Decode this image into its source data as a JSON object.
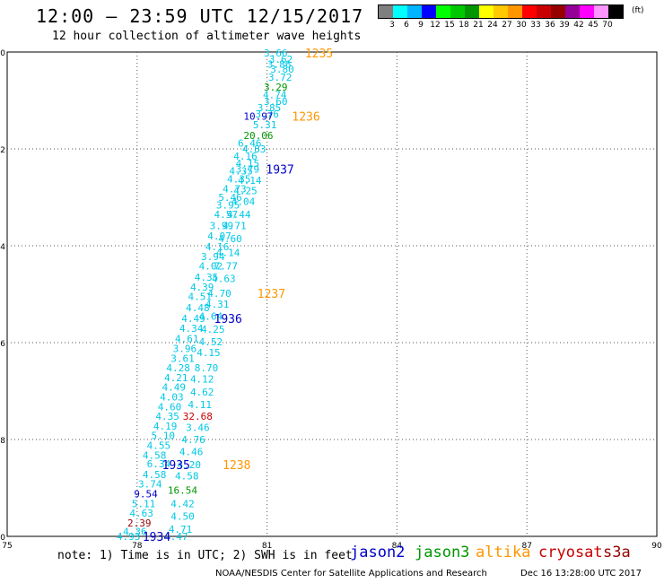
{
  "header": {
    "title": "12:00 – 23:59 UTC 12/15/2017",
    "subtitle": "12 hour collection of altimeter wave heights"
  },
  "color_scale": {
    "colors": [
      "#7f7f7f",
      "#00ffff",
      "#00b4ff",
      "#0000ff",
      "#00ff00",
      "#00c800",
      "#009600",
      "#ffff00",
      "#ffc800",
      "#ff9600",
      "#ff0000",
      "#c80000",
      "#960000",
      "#960096",
      "#ff00ff",
      "#ff96ff",
      "#000000"
    ],
    "labels": [
      "3",
      "6",
      "9",
      "12",
      "15",
      "18",
      "21",
      "24",
      "27",
      "30",
      "33",
      "36",
      "39",
      "42",
      "45",
      "70"
    ],
    "unit": "(ft)"
  },
  "axes": {
    "x_ticks": [
      "75",
      "78",
      "81",
      "84",
      "87",
      "90"
    ],
    "y_ticks": [
      "0",
      "-2",
      "-4",
      "-6",
      "-8",
      "-10"
    ]
  },
  "track_colors": {
    "wave": "#00c8e6",
    "jason2": "#0000c8",
    "jason3": "#009600",
    "altika": "#ff9600",
    "cryosat": "#c80000",
    "s3a": "#960000"
  },
  "chart_data": {
    "type": "scatter",
    "title": "12:00 – 23:59 UTC 12/15/2017",
    "subtitle": "12 hour collection of altimeter wave heights",
    "xlim": [
      75,
      90
    ],
    "ylim": [
      -10,
      0
    ],
    "grid": "dotted",
    "units": "ft",
    "points": [
      {
        "x": 81.2,
        "y": -0.02,
        "label": "3.66",
        "sat": "wave"
      },
      {
        "x": 81.32,
        "y": -0.15,
        "label": "3.62",
        "sat": "wave"
      },
      {
        "x": 81.28,
        "y": -0.25,
        "label": "3.86",
        "sat": "wave"
      },
      {
        "x": 81.35,
        "y": -0.35,
        "label": "3.80",
        "sat": "wave"
      },
      {
        "x": 81.3,
        "y": -0.52,
        "label": "3.72",
        "sat": "wave"
      },
      {
        "x": 81.2,
        "y": -0.72,
        "label": "3.29",
        "sat": "jason3"
      },
      {
        "x": 81.18,
        "y": -0.88,
        "label": "4.74",
        "sat": "wave"
      },
      {
        "x": 81.2,
        "y": -1.02,
        "label": "3.60",
        "sat": "wave"
      },
      {
        "x": 81.05,
        "y": -1.15,
        "label": "3.85",
        "sat": "wave"
      },
      {
        "x": 81.0,
        "y": -1.28,
        "label": "3.76",
        "sat": "wave"
      },
      {
        "x": 80.8,
        "y": -1.32,
        "label": "10.97",
        "sat": "jason2"
      },
      {
        "x": 80.95,
        "y": -1.5,
        "label": "5.31",
        "sat": "wave"
      },
      {
        "x": 80.8,
        "y": -1.72,
        "label": "20.06",
        "sat": "jason3"
      },
      {
        "x": 80.6,
        "y": -1.88,
        "label": "6.46",
        "sat": "wave"
      },
      {
        "x": 80.7,
        "y": -2.0,
        "label": "4.83",
        "sat": "wave"
      },
      {
        "x": 80.5,
        "y": -2.15,
        "label": "4.16",
        "sat": "wave"
      },
      {
        "x": 80.55,
        "y": -2.3,
        "label": "4.15",
        "sat": "wave"
      },
      {
        "x": 80.4,
        "y": -2.45,
        "label": "4.35",
        "sat": "wave"
      },
      {
        "x": 80.55,
        "y": -2.42,
        "label": "3.79",
        "sat": "wave"
      },
      {
        "x": 80.35,
        "y": -2.62,
        "label": "4.35",
        "sat": "wave"
      },
      {
        "x": 80.6,
        "y": -2.65,
        "label": "4.14",
        "sat": "wave"
      },
      {
        "x": 80.25,
        "y": -2.82,
        "label": "4.73",
        "sat": "wave"
      },
      {
        "x": 80.5,
        "y": -2.86,
        "label": "4.25",
        "sat": "wave"
      },
      {
        "x": 80.15,
        "y": -3.0,
        "label": "5.46",
        "sat": "wave"
      },
      {
        "x": 80.45,
        "y": -3.08,
        "label": "4.04",
        "sat": "wave"
      },
      {
        "x": 80.1,
        "y": -3.16,
        "label": "3.95",
        "sat": "wave"
      },
      {
        "x": 80.05,
        "y": -3.35,
        "label": "4.57",
        "sat": "wave"
      },
      {
        "x": 80.35,
        "y": -3.35,
        "label": "4.44",
        "sat": "wave"
      },
      {
        "x": 79.95,
        "y": -3.58,
        "label": "3.99",
        "sat": "wave"
      },
      {
        "x": 80.25,
        "y": -3.58,
        "label": "4.71",
        "sat": "wave"
      },
      {
        "x": 79.9,
        "y": -3.8,
        "label": "4.07",
        "sat": "wave"
      },
      {
        "x": 80.15,
        "y": -3.85,
        "label": "4.60",
        "sat": "wave"
      },
      {
        "x": 79.85,
        "y": -4.02,
        "label": "4.16",
        "sat": "wave"
      },
      {
        "x": 79.75,
        "y": -4.22,
        "label": "3.94",
        "sat": "wave"
      },
      {
        "x": 80.1,
        "y": -4.14,
        "label": "4.14",
        "sat": "wave"
      },
      {
        "x": 79.7,
        "y": -4.42,
        "label": "4.02",
        "sat": "wave"
      },
      {
        "x": 80.05,
        "y": -4.42,
        "label": "7.77",
        "sat": "wave"
      },
      {
        "x": 79.6,
        "y": -4.65,
        "label": "4.35",
        "sat": "wave"
      },
      {
        "x": 80.0,
        "y": -4.68,
        "label": "4.63",
        "sat": "wave"
      },
      {
        "x": 79.5,
        "y": -4.85,
        "label": "4.39",
        "sat": "wave"
      },
      {
        "x": 79.9,
        "y": -4.98,
        "label": "4.70",
        "sat": "wave"
      },
      {
        "x": 79.45,
        "y": -5.05,
        "label": "4.51",
        "sat": "wave"
      },
      {
        "x": 79.4,
        "y": -5.28,
        "label": "4.48",
        "sat": "wave"
      },
      {
        "x": 79.85,
        "y": -5.2,
        "label": "4.31",
        "sat": "wave"
      },
      {
        "x": 79.3,
        "y": -5.5,
        "label": "4.49",
        "sat": "wave"
      },
      {
        "x": 79.7,
        "y": -5.45,
        "label": "4.64",
        "sat": "wave"
      },
      {
        "x": 79.25,
        "y": -5.7,
        "label": "4.34",
        "sat": "wave"
      },
      {
        "x": 79.75,
        "y": -5.72,
        "label": "4.25",
        "sat": "wave"
      },
      {
        "x": 79.15,
        "y": -5.92,
        "label": "4.61",
        "sat": "wave"
      },
      {
        "x": 79.7,
        "y": -5.98,
        "label": "4.52",
        "sat": "wave"
      },
      {
        "x": 79.1,
        "y": -6.12,
        "label": "3.96",
        "sat": "wave"
      },
      {
        "x": 79.65,
        "y": -6.2,
        "label": "4.15",
        "sat": "wave"
      },
      {
        "x": 79.05,
        "y": -6.32,
        "label": "3.61",
        "sat": "wave"
      },
      {
        "x": 78.95,
        "y": -6.52,
        "label": "4.28",
        "sat": "wave"
      },
      {
        "x": 79.6,
        "y": -6.52,
        "label": "8.70",
        "sat": "wave"
      },
      {
        "x": 78.9,
        "y": -6.72,
        "label": "4.21",
        "sat": "wave"
      },
      {
        "x": 79.5,
        "y": -6.75,
        "label": "4.12",
        "sat": "wave"
      },
      {
        "x": 78.85,
        "y": -6.92,
        "label": "4.49",
        "sat": "wave"
      },
      {
        "x": 79.5,
        "y": -7.02,
        "label": "4.62",
        "sat": "wave"
      },
      {
        "x": 78.8,
        "y": -7.12,
        "label": "4.03",
        "sat": "wave"
      },
      {
        "x": 79.45,
        "y": -7.28,
        "label": "4.11",
        "sat": "wave"
      },
      {
        "x": 78.75,
        "y": -7.32,
        "label": "4.60",
        "sat": "wave"
      },
      {
        "x": 78.7,
        "y": -7.52,
        "label": "4.35",
        "sat": "wave"
      },
      {
        "x": 79.4,
        "y": -7.52,
        "label": "32.68",
        "sat": "cryosat"
      },
      {
        "x": 78.65,
        "y": -7.72,
        "label": "4.19",
        "sat": "wave"
      },
      {
        "x": 79.4,
        "y": -7.75,
        "label": "3.46",
        "sat": "wave"
      },
      {
        "x": 78.6,
        "y": -7.92,
        "label": "5.10",
        "sat": "wave"
      },
      {
        "x": 79.3,
        "y": -8.0,
        "label": "4.76",
        "sat": "wave"
      },
      {
        "x": 78.5,
        "y": -8.12,
        "label": "4.55",
        "sat": "wave"
      },
      {
        "x": 79.25,
        "y": -8.25,
        "label": "4.46",
        "sat": "wave"
      },
      {
        "x": 78.4,
        "y": -8.32,
        "label": "4.58",
        "sat": "wave"
      },
      {
        "x": 78.5,
        "y": -8.5,
        "label": "6.34",
        "sat": "wave"
      },
      {
        "x": 79.2,
        "y": -8.52,
        "label": "4.20",
        "sat": "wave"
      },
      {
        "x": 78.4,
        "y": -8.72,
        "label": "4.58",
        "sat": "wave"
      },
      {
        "x": 79.15,
        "y": -8.75,
        "label": "4.58",
        "sat": "wave"
      },
      {
        "x": 78.3,
        "y": -8.92,
        "label": "3.74",
        "sat": "wave"
      },
      {
        "x": 78.2,
        "y": -9.12,
        "label": "9.54",
        "sat": "jason2"
      },
      {
        "x": 79.05,
        "y": -9.05,
        "label": "16.54",
        "sat": "jason3"
      },
      {
        "x": 78.15,
        "y": -9.32,
        "label": "5.11",
        "sat": "wave"
      },
      {
        "x": 79.05,
        "y": -9.32,
        "label": "4.42",
        "sat": "wave"
      },
      {
        "x": 78.1,
        "y": -9.52,
        "label": "4.63",
        "sat": "wave"
      },
      {
        "x": 79.05,
        "y": -9.58,
        "label": "4.50",
        "sat": "wave"
      },
      {
        "x": 78.05,
        "y": -9.72,
        "label": "2.39",
        "sat": "s3a"
      },
      {
        "x": 79.0,
        "y": -9.85,
        "label": "4.71",
        "sat": "wave"
      },
      {
        "x": 77.95,
        "y": -9.9,
        "label": "4.36",
        "sat": "wave"
      },
      {
        "x": 77.8,
        "y": -10.0,
        "label": "4.93",
        "sat": "wave"
      },
      {
        "x": 78.9,
        "y": -10.0,
        "label": "4.47",
        "sat": "wave"
      }
    ],
    "pass_labels": [
      {
        "x": 82.2,
        "y": -0.02,
        "label": "1235",
        "sat": "altika"
      },
      {
        "x": 81.9,
        "y": -1.32,
        "label": "1236",
        "sat": "altika"
      },
      {
        "x": 81.3,
        "y": -2.42,
        "label": "1937",
        "sat": "jason2"
      },
      {
        "x": 80.1,
        "y": -5.5,
        "label": "1936",
        "sat": "jason2"
      },
      {
        "x": 81.1,
        "y": -4.98,
        "label": "1237",
        "sat": "altika"
      },
      {
        "x": 78.9,
        "y": -8.52,
        "label": "1935",
        "sat": "jason2"
      },
      {
        "x": 80.3,
        "y": -8.52,
        "label": "1238",
        "sat": "altika"
      },
      {
        "x": 78.45,
        "y": -10.0,
        "label": "1934",
        "sat": "jason2"
      }
    ]
  },
  "footer": {
    "note": "note: 1) Time is in UTC; 2) SWH is in feet",
    "legend": [
      {
        "key": "jason2",
        "label": "jason2"
      },
      {
        "key": "jason3",
        "label": "jason3"
      },
      {
        "key": "altika",
        "label": "altika"
      },
      {
        "key": "cryosat",
        "label": "cryosat"
      },
      {
        "key": "s3a",
        "label": "s3a"
      }
    ],
    "credit": "NOAA/NESDIS Center for Satellite Applications and Research",
    "timestamp": "Dec 16 13:28:00 UTC 2017"
  }
}
